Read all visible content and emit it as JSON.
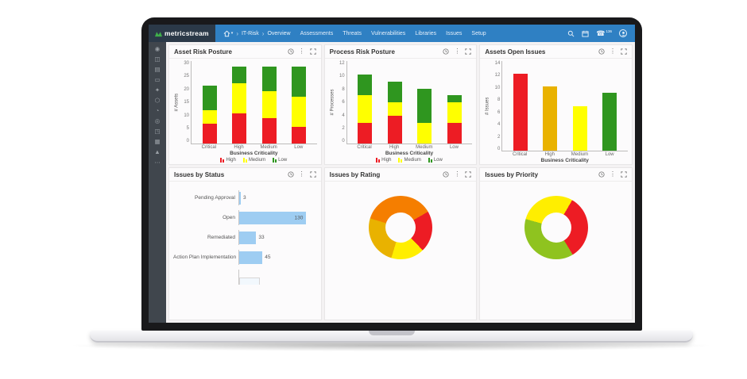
{
  "navbar": {
    "brand": "metricstream",
    "breadcrumb": [
      "IT-Risk",
      "Overview"
    ],
    "menu": [
      "Assessments",
      "Threats",
      "Vulnerabilities",
      "Libraries",
      "Issues",
      "Setup"
    ],
    "phone_badge": "136",
    "icons": [
      "home-icon",
      "search-icon",
      "calendar-icon",
      "phone-icon",
      "user-avatar-icon"
    ],
    "colors": {
      "bar": "#2f80c3",
      "brand_bg": "#2b3948",
      "logo_green": "#3fae4a"
    }
  },
  "sidebar": {
    "icons": [
      "◉",
      "◫",
      "▤",
      "▭",
      "✦",
      "⬡",
      "◔",
      "◎",
      "◳",
      "▦",
      "▲",
      "⋯"
    ],
    "bg": "#40464d"
  },
  "card_header_icons": [
    "history-clock-icon",
    "kebab-menu-icon",
    "expand-icon"
  ],
  "status_colors": {
    "high": "#ed1c24",
    "medium": "#ffff00",
    "low": "#2f961f",
    "amber": "#e9b200"
  },
  "chart_data": [
    {
      "type": "bar",
      "stacked": true,
      "title": "Asset Risk Posture",
      "categories": [
        "Critical",
        "High",
        "Medium",
        "Low"
      ],
      "series": [
        {
          "name": "High",
          "color": "#ed1c24",
          "values": [
            7,
            11,
            9,
            6
          ]
        },
        {
          "name": "Medium",
          "color": "#ffff00",
          "values": [
            5,
            11,
            10,
            11
          ]
        },
        {
          "name": "Low",
          "color": "#2f961f",
          "values": [
            9,
            6,
            9,
            11
          ]
        }
      ],
      "xlabel": "Business Criticality",
      "ylabel": "# Assets",
      "ylim": [
        0,
        30
      ],
      "ytick": 5,
      "legend": true,
      "grid": false
    },
    {
      "type": "bar",
      "stacked": true,
      "title": "Process Risk Posture",
      "categories": [
        "Critical",
        "High",
        "Medium",
        "Low"
      ],
      "series": [
        {
          "name": "High",
          "color": "#ed1c24",
          "values": [
            3,
            4,
            0,
            3
          ]
        },
        {
          "name": "Medium",
          "color": "#ffff00",
          "values": [
            4,
            2,
            3,
            3
          ]
        },
        {
          "name": "Low",
          "color": "#2f961f",
          "values": [
            3,
            3,
            5,
            1
          ]
        }
      ],
      "xlabel": "Business Criticality",
      "ylabel": "# Processes",
      "ylim": [
        0,
        12
      ],
      "ytick": 2,
      "legend": true,
      "grid": false
    },
    {
      "type": "bar",
      "stacked": false,
      "title": "Assets Open Issues",
      "categories": [
        "Critical",
        "High",
        "Medium",
        "Low"
      ],
      "values": [
        12,
        10,
        7,
        9
      ],
      "colors": [
        "#ed1c24",
        "#e9b200",
        "#ffff00",
        "#2f961f"
      ],
      "xlabel": "Business Criticality",
      "ylabel": "# Issues",
      "ylim": [
        0,
        14
      ],
      "ytick": 2,
      "legend": false,
      "grid": false
    },
    {
      "type": "hbar",
      "title": "Issues by Status",
      "categories": [
        "Pending Approval",
        "Open",
        "Remediated",
        "Action Plan Implementation"
      ],
      "values": [
        3,
        130,
        33,
        45
      ],
      "color": "#9ecdf2",
      "xmax": 135,
      "partial_next_bar": true
    },
    {
      "type": "donut",
      "title": "Issues by Rating",
      "start_deg": 60,
      "segments": [
        {
          "name": "red",
          "color": "#ed1c24",
          "pct": 21
        },
        {
          "name": "yellow",
          "color": "#ffee00",
          "pct": 17
        },
        {
          "name": "amber",
          "color": "#e9b200",
          "pct": 25
        },
        {
          "name": "orange",
          "color": "#f57e00",
          "pct": 37
        }
      ]
    },
    {
      "type": "donut",
      "title": "Issues by Priority",
      "start_deg": 30,
      "segments": [
        {
          "name": "red",
          "color": "#ed1c24",
          "pct": 33
        },
        {
          "name": "green",
          "color": "#8fc31f",
          "pct": 38
        },
        {
          "name": "yellow",
          "color": "#ffee00",
          "pct": 29
        }
      ]
    }
  ]
}
